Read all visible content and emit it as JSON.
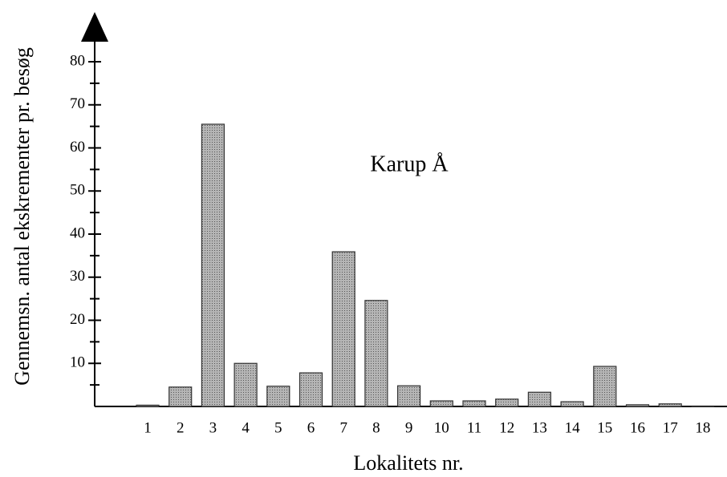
{
  "chart_data": {
    "type": "bar",
    "title": "Karup Å",
    "x_label": "Lokalitets nr.",
    "y_label": "Gennemsn. antal ekskrementer pr. besøg",
    "categories": [
      "1",
      "2",
      "3",
      "4",
      "5",
      "6",
      "7",
      "8",
      "9",
      "10",
      "11",
      "12",
      "13",
      "14",
      "15",
      "16",
      "17",
      "18"
    ],
    "values": [
      0.3,
      4.5,
      65.5,
      10,
      4.7,
      7.8,
      35.9,
      24.6,
      4.8,
      1.3,
      1.3,
      1.7,
      3.3,
      1.1,
      9.3,
      0.4,
      0.6,
      0.1
    ],
    "color": "#9a9a9a",
    "ylim": [
      0,
      80
    ],
    "yticks": [
      10,
      20,
      30,
      40,
      50,
      60,
      70,
      80
    ],
    "minor_yticks": [
      5,
      15,
      25,
      35,
      45,
      55,
      65,
      75
    ],
    "grid": false
  }
}
